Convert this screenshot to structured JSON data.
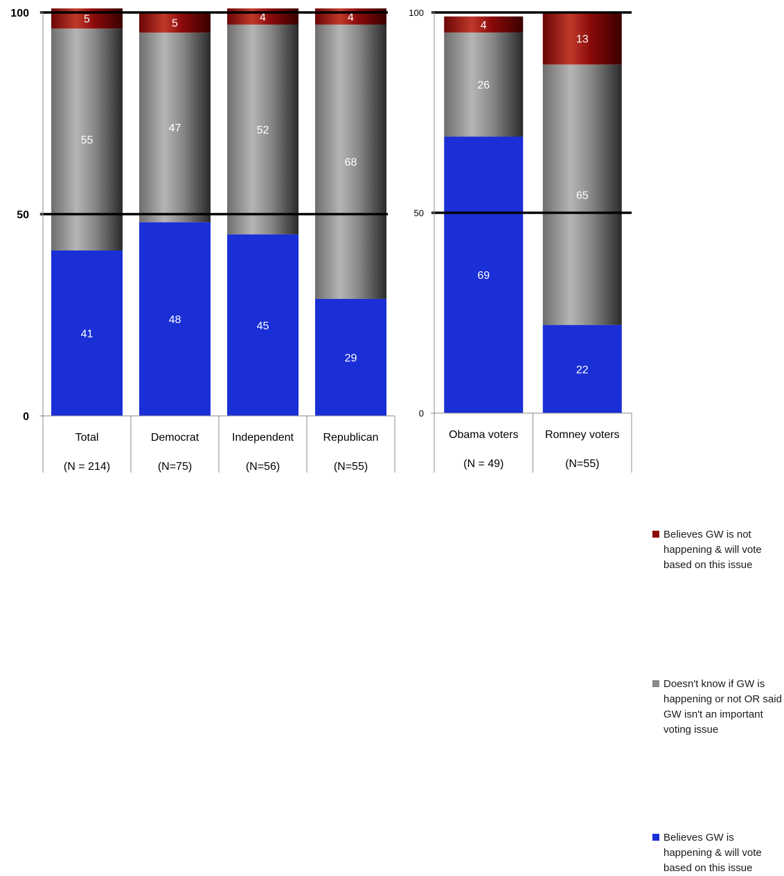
{
  "colors": {
    "blue": "#1a2fd6",
    "gray": "#8a8a8a",
    "red": "#8b0a0a"
  },
  "chart_data": [
    {
      "type": "bar",
      "stacked": true,
      "categories": [
        "Total",
        "Democrat",
        "Independent",
        "Republican"
      ],
      "category_notes": [
        "(N = 214)",
        "(N=75)",
        "(N=56)",
        "(N=55)"
      ],
      "series": [
        {
          "name": "Believes GW is happening & will vote based on this issue",
          "values": [
            41,
            48,
            45,
            29
          ]
        },
        {
          "name": "Doesn't know if GW is happening or not OR said GW isn't an important voting issue",
          "values": [
            55,
            47,
            52,
            68
          ]
        },
        {
          "name": "Believes GW is not happening & will vote based on this issue",
          "values": [
            5,
            5,
            4,
            4
          ]
        }
      ],
      "ylim": [
        0,
        100
      ],
      "yticks": [
        "0",
        "50",
        "100"
      ]
    },
    {
      "type": "bar",
      "stacked": true,
      "categories": [
        "Obama voters",
        "Romney voters"
      ],
      "category_notes": [
        "(N = 49)",
        "(N=55)"
      ],
      "series": [
        {
          "name": "Believes GW is happening & will vote based on this issue",
          "values": [
            69,
            22
          ]
        },
        {
          "name": "Doesn't know if GW is happening or not OR said GW isn't an important voting issue",
          "values": [
            26,
            65
          ]
        },
        {
          "name": "Believes GW is not happening & will vote based on this issue",
          "values": [
            4,
            13
          ]
        }
      ],
      "ylim": [
        0,
        100
      ],
      "yticks": [
        "0",
        "50",
        "100"
      ]
    }
  ],
  "legend": {
    "items": [
      {
        "label": "Believes GW is not happening & will vote based on this issue"
      },
      {
        "label": "Doesn't know if GW is happening or not OR said GW isn't an important voting issue"
      },
      {
        "label": "Believes GW is happening & will vote based on this issue"
      }
    ]
  }
}
